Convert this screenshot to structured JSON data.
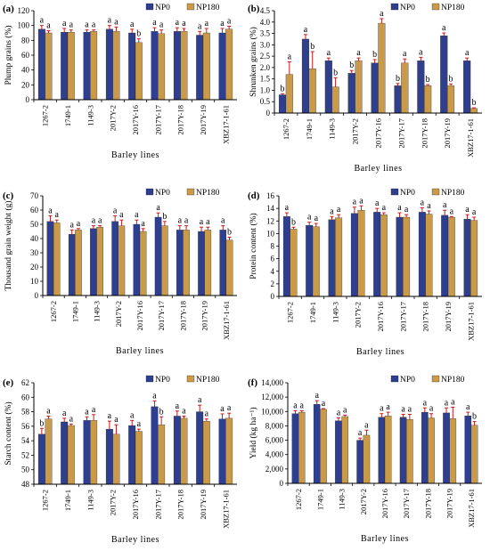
{
  "figure": {
    "legend_labels": [
      "NP0",
      "NP180"
    ],
    "colors": {
      "NP0": "#2e3f8f",
      "NP180": "#c89a4a",
      "error_bar": "#cc1a1a",
      "axis": "#000000"
    }
  },
  "chart_data": [
    {
      "panel": "(a)",
      "type": "bar",
      "ylabel": "Plump grains (%)",
      "xlabel": "Barley lines",
      "categories": [
        "1267-2",
        "1749-1",
        "1149-3",
        "2017Y-2",
        "2017Y-16",
        "2017Y-17",
        "2017Y-18",
        "2017Y-19",
        "XBZ17-1-61"
      ],
      "ylim": [
        0,
        120
      ],
      "yticks": [
        0,
        20,
        40,
        60,
        80,
        100,
        120
      ],
      "legend_position": "top-right",
      "series": [
        {
          "name": "NP0",
          "values": [
            95,
            91,
            91,
            95,
            90,
            92,
            92,
            87,
            90
          ],
          "errors": [
            5,
            5,
            3,
            5,
            5,
            5,
            5,
            5,
            6
          ],
          "letters": [
            "a",
            "a",
            "a",
            "a",
            "a",
            "a",
            "a",
            "a",
            "a"
          ]
        },
        {
          "name": "NP180",
          "values": [
            90,
            91,
            92,
            92,
            77,
            89,
            92,
            90,
            95
          ],
          "errors": [
            3,
            3,
            2,
            6,
            5,
            5,
            4,
            6,
            4
          ],
          "letters": [
            "a",
            "a",
            "a",
            "a",
            "b",
            "a",
            "a",
            "a",
            "a"
          ]
        }
      ]
    },
    {
      "panel": "(b)",
      "type": "bar",
      "ylabel": "Shrunken grains (%)",
      "xlabel": "Barley lines",
      "categories": [
        "1267-2",
        "1749-1",
        "1149-3",
        "2017Y-2",
        "2017Y-16",
        "2017Y-17",
        "2017Y-18",
        "2017Y-19",
        "XBZ17-1-61"
      ],
      "ylim": [
        0,
        4.5
      ],
      "yticks": [
        0,
        0.5,
        1,
        1.5,
        2,
        2.5,
        3,
        3.5,
        4,
        4.5
      ],
      "tick_decimals": 1,
      "legend_position": "top-right",
      "series": [
        {
          "name": "NP0",
          "values": [
            0.8,
            3.25,
            2.3,
            1.75,
            2.2,
            1.2,
            2.3,
            3.4,
            2.3
          ],
          "errors": [
            0.05,
            0.2,
            0.12,
            0.12,
            0.15,
            0.1,
            0.15,
            0.12,
            0.12
          ],
          "letters": [
            "b",
            "a",
            "a",
            "b",
            "b",
            "b",
            "a",
            "a",
            "a"
          ]
        },
        {
          "name": "NP180",
          "values": [
            1.7,
            1.95,
            1.15,
            2.3,
            3.95,
            2.2,
            1.2,
            1.2,
            0.2
          ],
          "errors": [
            0.55,
            0.75,
            0.4,
            0.12,
            0.2,
            0.18,
            0.05,
            0.08,
            0.03
          ],
          "letters": [
            "a",
            "b",
            "b",
            "a",
            "a",
            "a",
            "b",
            "b",
            "b"
          ]
        }
      ]
    },
    {
      "panel": "(c)",
      "type": "bar",
      "ylabel": "Thousand grain weight (g)",
      "xlabel": "Barley lines",
      "categories": [
        "1267-2",
        "1749-1",
        "1149-3",
        "2017Y-2",
        "2017Y-16",
        "2017Y-17",
        "2017Y-18",
        "2017Y-19",
        "XBZ17-1-61"
      ],
      "ylim": [
        0,
        70
      ],
      "yticks": [
        0,
        10,
        20,
        30,
        40,
        50,
        60,
        70
      ],
      "legend_position": "top-right",
      "series": [
        {
          "name": "NP0",
          "values": [
            52,
            43,
            47,
            52,
            50,
            55,
            46,
            45,
            46
          ],
          "errors": [
            4,
            3,
            2,
            4,
            3,
            3,
            3,
            3,
            3
          ],
          "letters": [
            "a",
            "a",
            "a",
            "a",
            "a",
            "a",
            "a",
            "a",
            "a"
          ]
        },
        {
          "name": "NP180",
          "values": [
            51,
            46,
            48,
            49,
            45,
            49,
            46,
            46,
            39
          ],
          "errors": [
            2,
            1,
            1,
            4,
            2,
            3,
            3,
            2,
            2
          ],
          "letters": [
            "a",
            "a",
            "a",
            "a",
            "a",
            "b",
            "a",
            "a",
            "b"
          ]
        }
      ]
    },
    {
      "panel": "(d)",
      "type": "bar",
      "ylabel": "Protein content (%)",
      "xlabel": "Barley lines",
      "categories": [
        "1267-2",
        "1749-1",
        "1149-3",
        "2017Y-2",
        "2017Y-16",
        "2017Y-17",
        "2017Y-18",
        "2017Y-19",
        "XBZ17-1-61"
      ],
      "ylim": [
        0,
        16
      ],
      "yticks": [
        0,
        2,
        4,
        6,
        8,
        10,
        12,
        14,
        16
      ],
      "legend_position": "top-right",
      "series": [
        {
          "name": "NP0",
          "values": [
            12.7,
            11.3,
            12.2,
            13.2,
            13.4,
            12.6,
            13.4,
            12.9,
            12.3
          ],
          "errors": [
            0.6,
            0.5,
            0.5,
            1.0,
            0.6,
            0.7,
            0.7,
            0.8,
            0.7
          ],
          "letters": [
            "a",
            "a",
            "a",
            "a",
            "a",
            "a",
            "a",
            "a",
            "a"
          ]
        },
        {
          "name": "NP180",
          "values": [
            10.7,
            11.1,
            12.5,
            13.7,
            13.0,
            12.6,
            13.1,
            12.6,
            12.1
          ],
          "errors": [
            0.3,
            0.5,
            0.5,
            0.7,
            0.3,
            0.4,
            0.5,
            0.1,
            0.5
          ],
          "letters": [
            "b",
            "a",
            "a",
            "a",
            "a",
            "a",
            "a",
            "a",
            "a"
          ]
        }
      ]
    },
    {
      "panel": "(e)",
      "type": "bar",
      "ylabel": "Starch content (%)",
      "xlabel": "Barley lines",
      "categories": [
        "1267-2",
        "1749-1",
        "1149-3",
        "2017Y-2",
        "2017Y-16",
        "2017Y-17",
        "2017Y-18",
        "2017Y-19",
        "XBZ17-1-61"
      ],
      "ylim": [
        48,
        62
      ],
      "yticks": [
        48,
        50,
        52,
        54,
        56,
        58,
        60,
        62
      ],
      "legend_position": "top-right",
      "series": [
        {
          "name": "NP0",
          "values": [
            54.9,
            56.6,
            56.8,
            55.6,
            56.1,
            58.7,
            57.4,
            58.0,
            57.0
          ],
          "errors": [
            0.8,
            0.5,
            0.5,
            1.1,
            0.7,
            0.8,
            0.7,
            0.9,
            0.7
          ],
          "letters": [
            "b",
            "a",
            "a",
            "a",
            "a",
            "a",
            "a",
            "a",
            "a"
          ]
        },
        {
          "name": "NP180",
          "values": [
            57.0,
            56.1,
            56.8,
            54.9,
            55.3,
            56.2,
            57.1,
            56.7,
            57.1
          ],
          "errors": [
            0.4,
            0.2,
            0.8,
            1.3,
            0.3,
            1.1,
            0.3,
            0.3,
            0.7
          ],
          "letters": [
            "a",
            "a",
            "a",
            "a",
            "a",
            "b",
            "a",
            "a",
            "a"
          ]
        }
      ]
    },
    {
      "panel": "(f)",
      "type": "bar",
      "ylabel": "Yield (kg ha⁻¹)",
      "xlabel": "Barley lines",
      "categories": [
        "1267-2",
        "1749-1",
        "1149-3",
        "2017Y-2",
        "2017Y-16",
        "2017Y-17",
        "2017Y-18",
        "2017Y-19",
        "XBZ17-1-61"
      ],
      "ylim": [
        0,
        14000
      ],
      "yticks": [
        0,
        2000,
        4000,
        6000,
        8000,
        10000,
        12000,
        14000
      ],
      "tick_format": "thousands",
      "legend_position": "top-right",
      "series": [
        {
          "name": "NP0",
          "values": [
            9700,
            11000,
            8700,
            6000,
            9200,
            9200,
            9900,
            9800,
            9400
          ],
          "errors": [
            400,
            500,
            400,
            300,
            500,
            400,
            600,
            700,
            500
          ],
          "letters": [
            "a",
            "a",
            "a",
            "a",
            "a",
            "a",
            "a",
            "a",
            "a"
          ]
        },
        {
          "name": "NP180",
          "values": [
            9900,
            10300,
            9300,
            6700,
            9400,
            8900,
            9100,
            9000,
            8100
          ],
          "errors": [
            200,
            100,
            200,
            700,
            500,
            700,
            600,
            1600,
            500
          ],
          "letters": [
            "a",
            "a",
            "a",
            "a",
            "a",
            "a",
            "a",
            "a",
            "b"
          ]
        }
      ]
    }
  ]
}
